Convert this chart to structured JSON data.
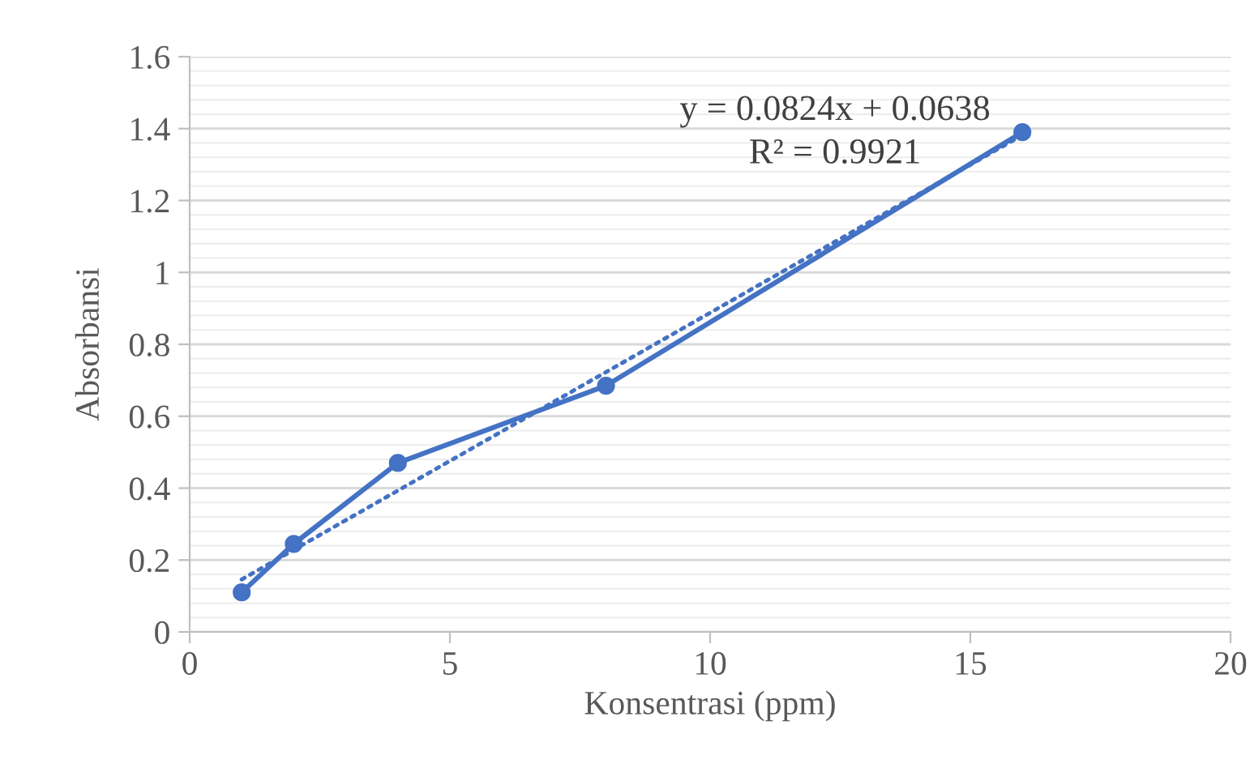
{
  "chart_data": {
    "type": "line",
    "xlabel": "Konsentrasi (ppm)",
    "ylabel": "Absorbansi",
    "series": [
      {
        "color": "#4472c4",
        "x": [
          1,
          2,
          4,
          8,
          16
        ],
        "values": [
          0.11,
          0.245,
          0.47,
          0.685,
          1.39
        ],
        "marker": "circle",
        "line_style": "solid"
      },
      {
        "color": "#4472c4",
        "x": [
          1,
          16
        ],
        "values": [
          0.146,
          1.382
        ],
        "marker": "none",
        "line_style": "dotted"
      }
    ],
    "annotations": [
      "y = 0.0824x + 0.0638",
      "R² = 0.9921"
    ],
    "xlim": [
      0,
      20
    ],
    "xticks": [
      0,
      5,
      10,
      15,
      20
    ],
    "ylim": [
      0,
      1.6
    ],
    "yticks": [
      0,
      0.2,
      0.4,
      0.6,
      0.8,
      1,
      1.2,
      1.4,
      1.6
    ],
    "grid": "y",
    "legend": false
  }
}
